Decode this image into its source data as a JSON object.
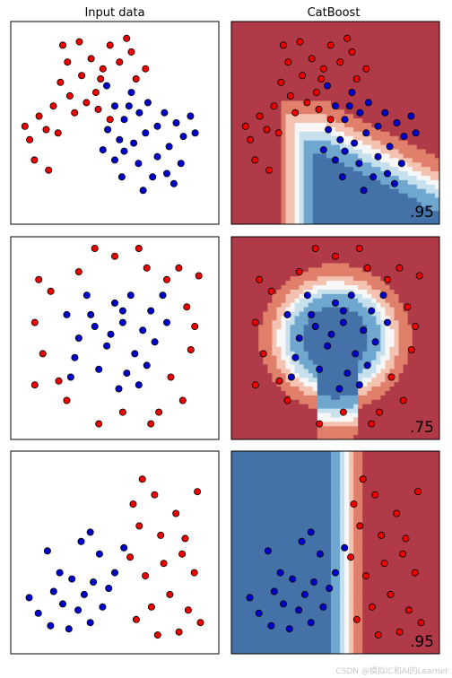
{
  "figure": {
    "column_titles": [
      "Input data",
      "CatBoost"
    ],
    "watermark": "CSDN @模拟IC和AI的Learner"
  },
  "colors": {
    "class0_point": "#0000cc",
    "class1_point": "#ee0000",
    "region_class0": "#4472a8",
    "region_class1": "#b03a48",
    "boundary_light_blue": "#c6e0ee",
    "boundary_light_red": "#f4c2b0"
  },
  "chart_data": [
    {
      "type": "scatter",
      "dataset": "moons",
      "xlim": [
        -1.8,
        2.6
      ],
      "ylim": [
        -1.2,
        1.8
      ],
      "test_score": ".95",
      "blue_points": [
        [
          0.23,
          0.85
        ],
        [
          0.6,
          0.35
        ],
        [
          0.92,
          0.45
        ],
        [
          1.05,
          0.15
        ],
        [
          0.8,
          0.0
        ],
        [
          0.6,
          -0.12
        ],
        [
          0.4,
          -0.25
        ],
        [
          1.2,
          -0.5
        ],
        [
          1.3,
          -0.2
        ],
        [
          1.55,
          -0.05
        ],
        [
          1.7,
          0.3
        ],
        [
          1.85,
          0.1
        ],
        [
          1.45,
          0.45
        ],
        [
          1.1,
          0.6
        ],
        [
          0.75,
          0.75
        ],
        [
          0.4,
          0.55
        ],
        [
          0.25,
          0.2
        ],
        [
          0.5,
          0.05
        ],
        [
          0.9,
          -0.3
        ],
        [
          1.5,
          -0.45
        ],
        [
          1.8,
          -0.3
        ],
        [
          2.1,
          0.15
        ],
        [
          2.0,
          0.4
        ],
        [
          1.3,
          0.25
        ],
        [
          0.15,
          -0.1
        ],
        [
          0.7,
          0.55
        ],
        [
          1.65,
          -0.6
        ],
        [
          1.0,
          -0.7
        ],
        [
          0.55,
          -0.5
        ]
      ],
      "red_points": [
        [
          -0.7,
          1.45
        ],
        [
          0.3,
          1.45
        ],
        [
          -0.3,
          1.0
        ],
        [
          -0.75,
          0.9
        ],
        [
          -0.9,
          0.55
        ],
        [
          -1.05,
          0.2
        ],
        [
          -1.2,
          0.4
        ],
        [
          -1.4,
          0.05
        ],
        [
          -1.3,
          -0.25
        ],
        [
          -0.6,
          1.2
        ],
        [
          -0.1,
          1.25
        ],
        [
          0.0,
          0.75
        ],
        [
          0.15,
          1.1
        ],
        [
          0.5,
          1.2
        ],
        [
          0.85,
          0.95
        ],
        [
          1.05,
          1.1
        ],
        [
          -0.45,
          0.45
        ],
        [
          -0.2,
          0.6
        ],
        [
          0.1,
          0.95
        ],
        [
          -0.8,
          0.15
        ],
        [
          -1.0,
          -0.4
        ],
        [
          0.65,
          1.55
        ],
        [
          -0.35,
          1.5
        ],
        [
          0.75,
          1.35
        ],
        [
          -1.5,
          0.25
        ],
        [
          -0.55,
          0.7
        ],
        [
          0.3,
          0.35
        ],
        [
          0.05,
          0.5
        ]
      ]
    },
    {
      "type": "scatter",
      "dataset": "circles",
      "xlim": [
        -1.3,
        1.3
      ],
      "ylim": [
        -1.3,
        1.3
      ],
      "test_score": ".75",
      "blue_points": [
        [
          -0.3,
          0.3
        ],
        [
          0.1,
          0.2
        ],
        [
          -0.1,
          -0.1
        ],
        [
          0.25,
          -0.2
        ],
        [
          -0.45,
          0.0
        ],
        [
          0.0,
          0.45
        ],
        [
          0.35,
          0.1
        ],
        [
          -0.2,
          -0.4
        ],
        [
          0.15,
          -0.45
        ],
        [
          -0.5,
          -0.25
        ],
        [
          0.45,
          0.35
        ],
        [
          -0.05,
          0.05
        ],
        [
          0.2,
          0.55
        ],
        [
          -0.35,
          0.55
        ],
        [
          0.5,
          -0.05
        ],
        [
          0.6,
          0.55
        ],
        [
          -0.6,
          0.3
        ],
        [
          0.05,
          -0.65
        ],
        [
          0.3,
          -0.6
        ],
        [
          -0.25,
          0.15
        ],
        [
          0.4,
          -0.35
        ],
        [
          -0.55,
          -0.5
        ],
        [
          0.65,
          0.2
        ],
        [
          0.1,
          0.35
        ]
      ],
      "red_points": [
        [
          0.8,
          0.9
        ],
        [
          0.9,
          0.4
        ],
        [
          -0.8,
          0.6
        ],
        [
          -0.9,
          -0.2
        ],
        [
          0.0,
          1.05
        ],
        [
          0.4,
          0.9
        ],
        [
          -0.45,
          0.85
        ],
        [
          0.7,
          -0.5
        ],
        [
          0.95,
          -0.15
        ],
        [
          -0.6,
          -0.8
        ],
        [
          0.1,
          -0.95
        ],
        [
          -0.2,
          -1.1
        ],
        [
          0.55,
          -0.95
        ],
        [
          -1.0,
          0.2
        ],
        [
          1.0,
          0.15
        ],
        [
          -0.7,
          -0.55
        ],
        [
          0.85,
          -0.8
        ],
        [
          0.3,
          1.15
        ],
        [
          -0.25,
          1.15
        ],
        [
          -0.95,
          0.75
        ],
        [
          0.65,
          0.75
        ],
        [
          -1.0,
          -0.6
        ],
        [
          0.45,
          -1.1
        ],
        [
          1.05,
          0.8
        ]
      ]
    },
    {
      "type": "scatter",
      "dataset": "linearly_separable",
      "xlim": [
        -3.2,
        3.6
      ],
      "ylim": [
        -2.3,
        4.2
      ],
      "test_score": ".95",
      "blue_points": [
        [
          -2.0,
          1.0
        ],
        [
          -1.6,
          0.3
        ],
        [
          -1.2,
          0.1
        ],
        [
          -0.8,
          -0.4
        ],
        [
          -1.0,
          -0.9
        ],
        [
          -0.5,
          0.0
        ],
        [
          -2.3,
          -1.0
        ],
        [
          -1.5,
          -0.7
        ],
        [
          -0.3,
          0.9
        ],
        [
          -0.9,
          1.3
        ],
        [
          -1.8,
          -0.3
        ],
        [
          -0.2,
          -0.8
        ],
        [
          0.2,
          0.3
        ],
        [
          -0.6,
          -1.3
        ],
        [
          0.5,
          1.1
        ],
        [
          -2.6,
          -0.5
        ],
        [
          -1.3,
          -1.5
        ],
        [
          0.0,
          -0.2
        ],
        [
          -0.6,
          1.6
        ],
        [
          -1.9,
          -1.4
        ]
      ],
      "red_points": [
        [
          1.5,
          2.8
        ],
        [
          2.2,
          2.2
        ],
        [
          1.0,
          1.8
        ],
        [
          2.5,
          1.4
        ],
        [
          1.8,
          0.6
        ],
        [
          2.8,
          0.3
        ],
        [
          1.2,
          0.2
        ],
        [
          2.0,
          -0.4
        ],
        [
          2.6,
          -0.9
        ],
        [
          1.4,
          -0.8
        ],
        [
          0.9,
          -1.2
        ],
        [
          3.0,
          -1.3
        ],
        [
          2.3,
          -1.6
        ],
        [
          1.7,
          1.5
        ],
        [
          2.9,
          2.9
        ],
        [
          1.1,
          3.3
        ],
        [
          0.7,
          0.8
        ],
        [
          1.6,
          -1.7
        ],
        [
          2.4,
          0.9
        ],
        [
          0.8,
          2.5
        ]
      ]
    }
  ]
}
